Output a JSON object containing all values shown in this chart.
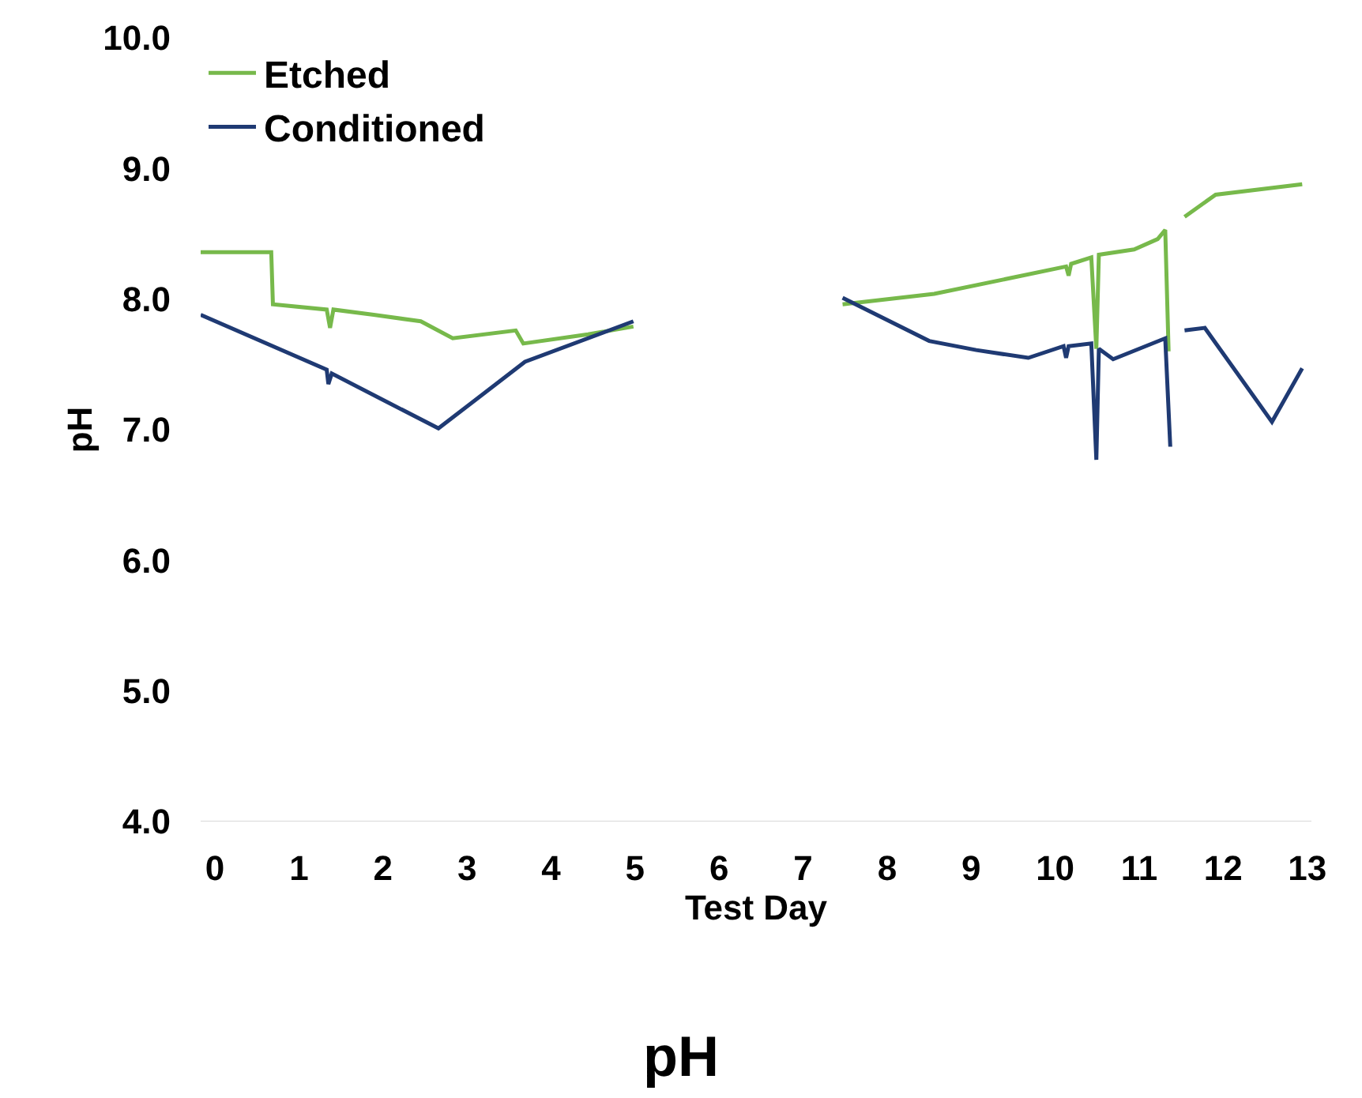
{
  "chart_data": {
    "type": "line",
    "title": "pH",
    "xlabel": "Test Day",
    "ylabel": "pH",
    "xlim": [
      -0.17,
      13.05
    ],
    "xticks": [
      0,
      1,
      2,
      3,
      4,
      5,
      6,
      7,
      8,
      9,
      10,
      11,
      12,
      13
    ],
    "ylim": [
      4,
      10
    ],
    "yticks": [
      {
        "value": 4,
        "label": "4.0"
      },
      {
        "value": 5,
        "label": "5.0"
      },
      {
        "value": 6,
        "label": "6.0"
      },
      {
        "value": 7,
        "label": "7.0"
      },
      {
        "value": 8,
        "label": "8.0"
      },
      {
        "value": 9,
        "label": "9.0"
      },
      {
        "value": 10,
        "label": "10.0"
      }
    ],
    "grid": false,
    "legend": "top left",
    "marker": "none",
    "line_style": "solid",
    "series": [
      {
        "name": "Etched",
        "color": "#77b94b",
        "x": [
          -0.17,
          0.67,
          0.69,
          1.33,
          1.37,
          1.41,
          1.89,
          2.45,
          2.83,
          3.58,
          3.67,
          4.44,
          4.98,
          null,
          7.47,
          8.56,
          10.13,
          10.16,
          10.19,
          10.43,
          10.49,
          10.52,
          10.94,
          11.22,
          11.31,
          11.35,
          null,
          11.54,
          11.91,
          12.94
        ],
        "values": [
          8.36,
          8.36,
          7.96,
          7.92,
          7.78,
          7.92,
          7.88,
          7.83,
          7.7,
          7.76,
          7.66,
          7.73,
          7.79,
          null,
          7.96,
          8.04,
          8.25,
          8.18,
          8.27,
          8.32,
          7.62,
          8.34,
          8.38,
          8.46,
          8.53,
          7.6,
          null,
          8.63,
          8.8,
          8.88
        ]
      },
      {
        "name": "Conditioned",
        "color": "#1f3a73",
        "x": [
          -0.17,
          1.33,
          1.35,
          1.39,
          2.66,
          3.69,
          4.98,
          null,
          7.47,
          8.5,
          9.06,
          9.68,
          10.1,
          10.13,
          10.16,
          10.43,
          10.49,
          10.52,
          10.69,
          11.31,
          11.37,
          null,
          11.54,
          11.78,
          12.58,
          12.94
        ],
        "values": [
          7.88,
          7.46,
          7.35,
          7.43,
          7.01,
          7.52,
          7.83,
          null,
          8.01,
          7.68,
          7.61,
          7.55,
          7.64,
          7.55,
          7.64,
          7.66,
          6.77,
          7.62,
          7.54,
          7.7,
          6.87,
          null,
          7.76,
          7.78,
          7.06,
          7.47
        ]
      }
    ]
  }
}
